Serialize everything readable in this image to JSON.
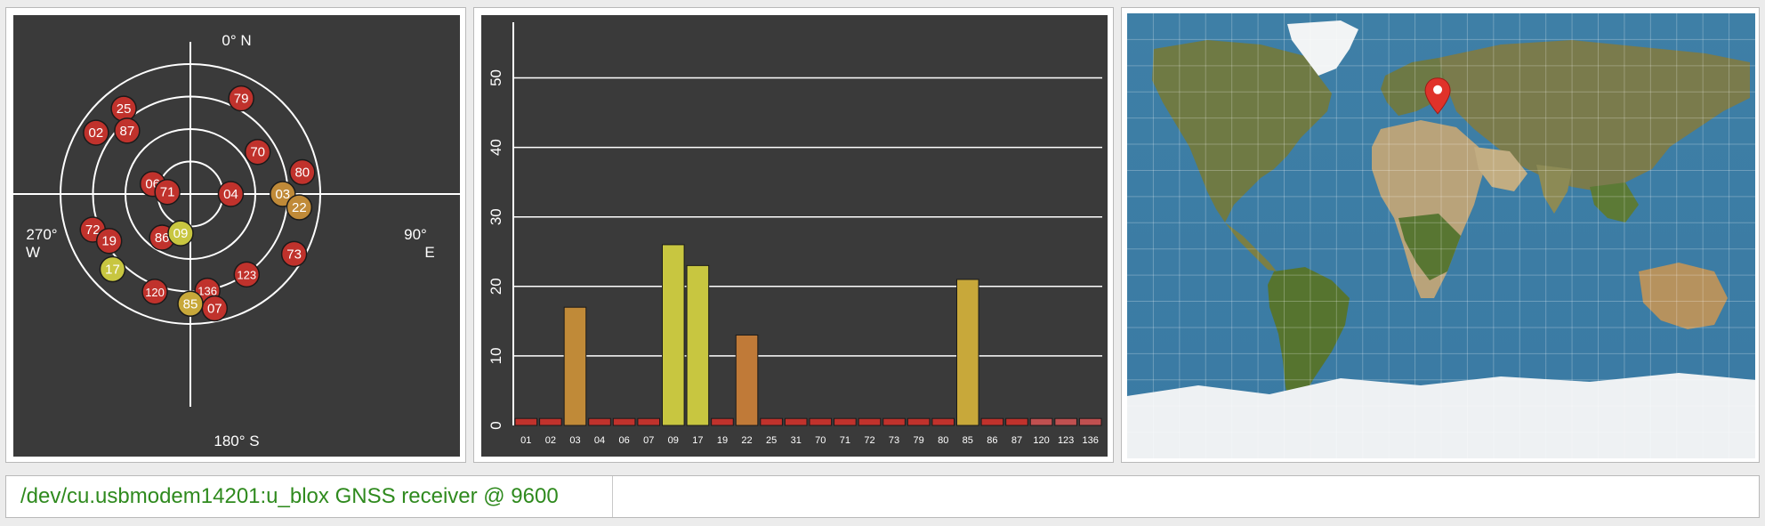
{
  "skyview": {
    "labels": {
      "north": "0° N",
      "south": "180° S",
      "east_deg": "90°",
      "east": "E",
      "west_deg": "270°",
      "west": "W"
    },
    "satellites": [
      {
        "id": "25",
        "az": 322,
        "el": 15,
        "color": "#c0322c"
      },
      {
        "id": "79",
        "az": 28,
        "el": 15,
        "color": "#c0322c"
      },
      {
        "id": "87",
        "az": 315,
        "el": 28,
        "color": "#c0322c"
      },
      {
        "id": "02",
        "az": 303,
        "el": 12,
        "color": "#c0322c"
      },
      {
        "id": "70",
        "az": 58,
        "el": 35,
        "color": "#c0322c"
      },
      {
        "id": "06",
        "az": 285,
        "el": 63,
        "color": "#c0322c"
      },
      {
        "id": "71",
        "az": 275,
        "el": 74,
        "color": "#c0322c"
      },
      {
        "id": "04",
        "az": 90,
        "el": 62,
        "color": "#c0322c"
      },
      {
        "id": "80",
        "az": 79,
        "el": 11,
        "color": "#c0322c"
      },
      {
        "id": "03",
        "az": 90,
        "el": 26,
        "color": "#c08a38"
      },
      {
        "id": "22",
        "az": 97,
        "el": 14,
        "color": "#c08a38"
      },
      {
        "id": "72",
        "az": 250,
        "el": 18,
        "color": "#c0322c"
      },
      {
        "id": "19",
        "az": 240,
        "el": 25,
        "color": "#c0322c"
      },
      {
        "id": "86",
        "az": 213,
        "el": 54,
        "color": "#c0322c"
      },
      {
        "id": "09",
        "az": 194,
        "el": 62,
        "color": "#c8c640"
      },
      {
        "id": "17",
        "az": 226,
        "el": 15,
        "color": "#c8c640"
      },
      {
        "id": "73",
        "az": 120,
        "el": 7,
        "color": "#c0322c"
      },
      {
        "id": "123",
        "az": 145,
        "el": 22,
        "color": "#c0322c"
      },
      {
        "id": "120",
        "az": 200,
        "el": 18,
        "color": "#c0322c"
      },
      {
        "id": "136",
        "az": 170,
        "el": 22,
        "color": "#c0322c"
      },
      {
        "id": "07",
        "az": 168,
        "el": 9,
        "color": "#c0322c"
      },
      {
        "id": "85",
        "az": 180,
        "el": 14,
        "color": "#c8a83a"
      }
    ]
  },
  "chart_data": {
    "type": "bar",
    "title": "",
    "xlabel": "",
    "ylabel": "",
    "ylim": [
      0,
      58
    ],
    "yticks": [
      "0",
      "10",
      "20",
      "30",
      "40",
      "50"
    ],
    "categories": [
      "01",
      "02",
      "03",
      "04",
      "06",
      "07",
      "09",
      "17",
      "19",
      "22",
      "25",
      "31",
      "70",
      "71",
      "72",
      "73",
      "79",
      "80",
      "85",
      "86",
      "87",
      "120",
      "123",
      "136"
    ],
    "values": [
      1,
      1,
      17,
      1,
      1,
      1,
      26,
      23,
      1,
      13,
      1,
      1,
      1,
      1,
      1,
      1,
      1,
      1,
      21,
      1,
      1,
      1,
      1,
      1
    ],
    "colors": [
      "#c0322c",
      "#c0322c",
      "#c08a38",
      "#c0322c",
      "#c0322c",
      "#c0322c",
      "#c8c640",
      "#c8c640",
      "#c0322c",
      "#c07a38",
      "#c0322c",
      "#c0322c",
      "#c0322c",
      "#c0322c",
      "#c0322c",
      "#c0322c",
      "#c0322c",
      "#c0322c",
      "#c8a83a",
      "#c0322c",
      "#c0322c",
      "#c05050",
      "#c05050",
      "#c05050"
    ]
  },
  "status": {
    "device": "/dev/cu.usbmodem14201:u_blox GNSS receiver @ 9600"
  },
  "map": {
    "marker_lon": -2,
    "marker_lat": 53
  }
}
